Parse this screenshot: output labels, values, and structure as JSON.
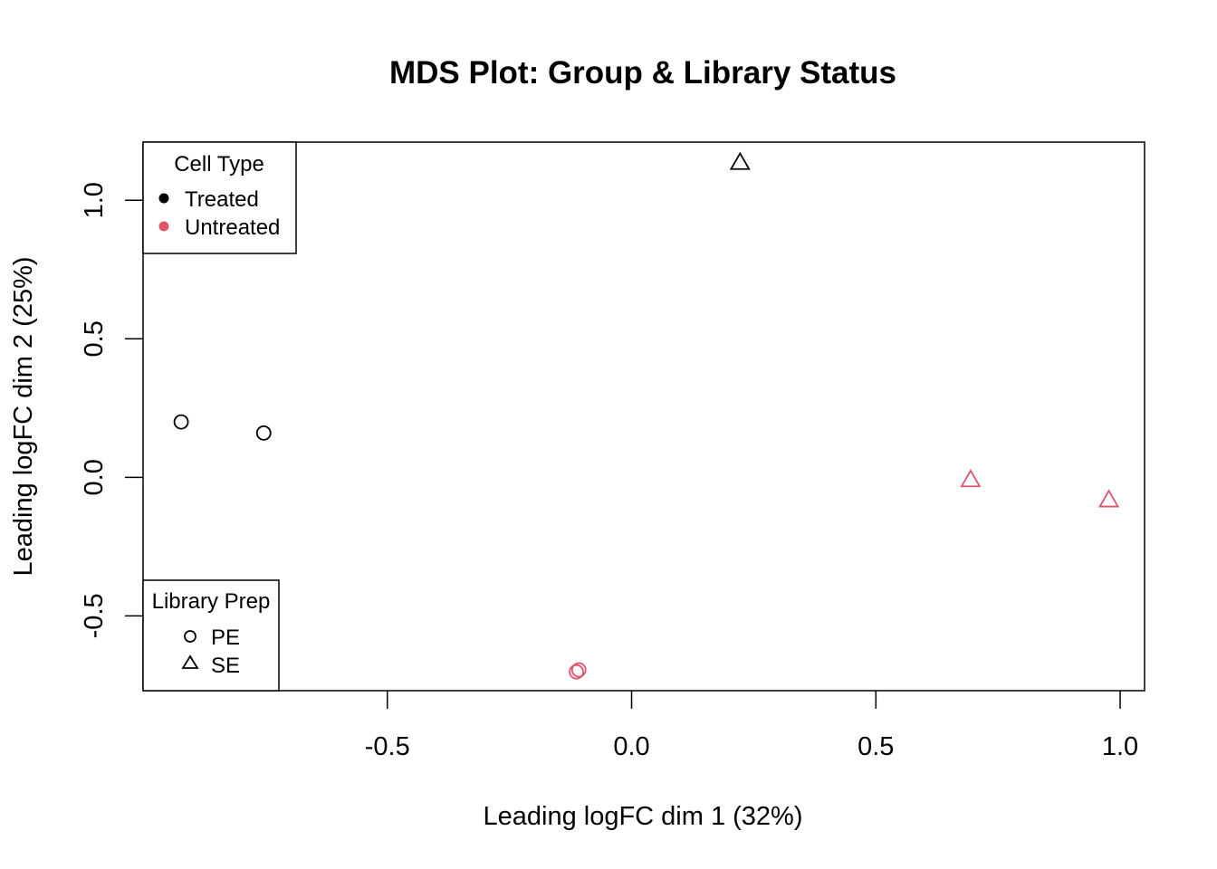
{
  "chart_data": {
    "type": "scatter",
    "title": "MDS Plot: Group & Library Status",
    "xlabel": "Leading logFC dim 1 (32%)",
    "ylabel": "Leading logFC dim 2 (25%)",
    "xlim": [
      -1.0,
      1.05
    ],
    "ylim": [
      -0.77,
      1.21
    ],
    "xticks": [
      -0.5,
      0.0,
      0.5,
      1.0
    ],
    "xtick_labels": [
      "-0.5",
      "0.0",
      "0.5",
      "1.0"
    ],
    "yticks": [
      -0.5,
      0.0,
      0.5,
      1.0
    ],
    "ytick_labels": [
      "-0.5",
      "0.0",
      "0.5",
      "1.0"
    ],
    "grid": false,
    "points": [
      {
        "x": -0.922,
        "y": 0.2,
        "group": "Treated",
        "library": "PE"
      },
      {
        "x": -0.753,
        "y": 0.16,
        "group": "Treated",
        "library": "PE"
      },
      {
        "x": 0.222,
        "y": 1.135,
        "group": "Treated",
        "library": "SE"
      },
      {
        "x": -0.108,
        "y": -0.695,
        "group": "Untreated",
        "library": "PE"
      },
      {
        "x": -0.113,
        "y": -0.702,
        "group": "Untreated",
        "library": "PE"
      },
      {
        "x": 0.694,
        "y": -0.01,
        "group": "Untreated",
        "library": "SE"
      },
      {
        "x": 0.977,
        "y": -0.083,
        "group": "Untreated",
        "library": "SE"
      }
    ],
    "colors": {
      "Treated": "#000000",
      "Untreated": "#DF536B"
    },
    "shapes": {
      "PE": "circle",
      "SE": "triangle"
    },
    "legends": [
      {
        "title": "Cell Type",
        "placement": "top-left",
        "entries": [
          {
            "label": "Treated",
            "color": "#000000",
            "symbol": "filled-circle"
          },
          {
            "label": "Untreated",
            "color": "#DF536B",
            "symbol": "filled-circle"
          }
        ]
      },
      {
        "title": "Library Prep",
        "placement": "bottom-left",
        "entries": [
          {
            "label": "PE",
            "color": "#000000",
            "symbol": "circle"
          },
          {
            "label": "SE",
            "color": "#000000",
            "symbol": "triangle"
          }
        ]
      }
    ]
  }
}
